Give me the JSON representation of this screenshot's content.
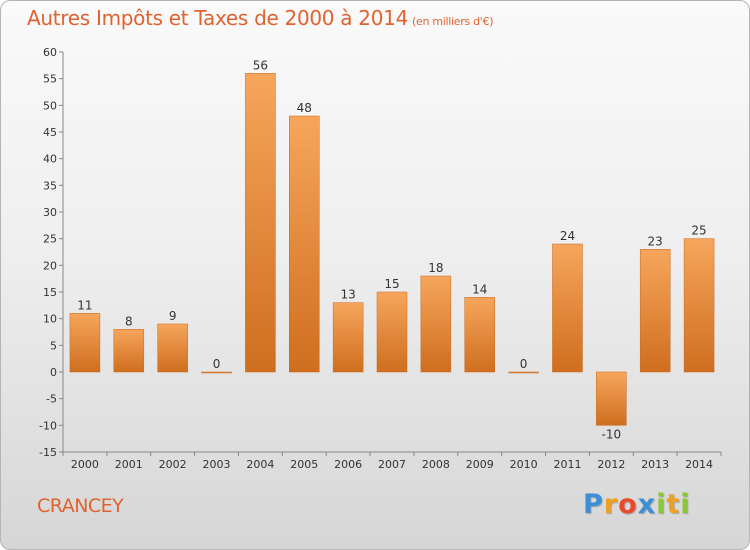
{
  "title": "Autres Impôts et Taxes de 2000 à 2014",
  "subtitle": "(en milliers d'€)",
  "commune": "CRANCEY",
  "logo": {
    "letters": [
      "P",
      "r",
      "o",
      "x",
      "i",
      "t",
      "i"
    ],
    "colors": [
      "#3b8fd6",
      "#f0a020",
      "#e84a2a",
      "#3b8fd6",
      "#8cc63f",
      "#f0a020",
      "#8cc63f"
    ]
  },
  "colors": {
    "bar_top": "#f6a65c",
    "bar_bottom": "#cf6e1f",
    "accent": "#e0632f"
  },
  "chart_data": {
    "type": "bar",
    "categories": [
      "2000",
      "2001",
      "2002",
      "2003",
      "2004",
      "2005",
      "2006",
      "2007",
      "2008",
      "2009",
      "2010",
      "2011",
      "2012",
      "2013",
      "2014"
    ],
    "values": [
      11,
      8,
      9,
      0,
      56,
      48,
      13,
      15,
      18,
      14,
      0,
      24,
      -10,
      23,
      25
    ],
    "data_labels": [
      "11",
      "8",
      "9",
      "0",
      "56",
      "48",
      "13",
      "15",
      "18",
      "14",
      "0",
      "24",
      "-10",
      "23",
      "25"
    ],
    "ylim": [
      -15,
      60
    ],
    "yticks": [
      -15,
      -10,
      -5,
      0,
      5,
      10,
      15,
      20,
      25,
      30,
      35,
      40,
      45,
      50,
      55,
      60
    ],
    "grid": false,
    "legend": "none"
  }
}
